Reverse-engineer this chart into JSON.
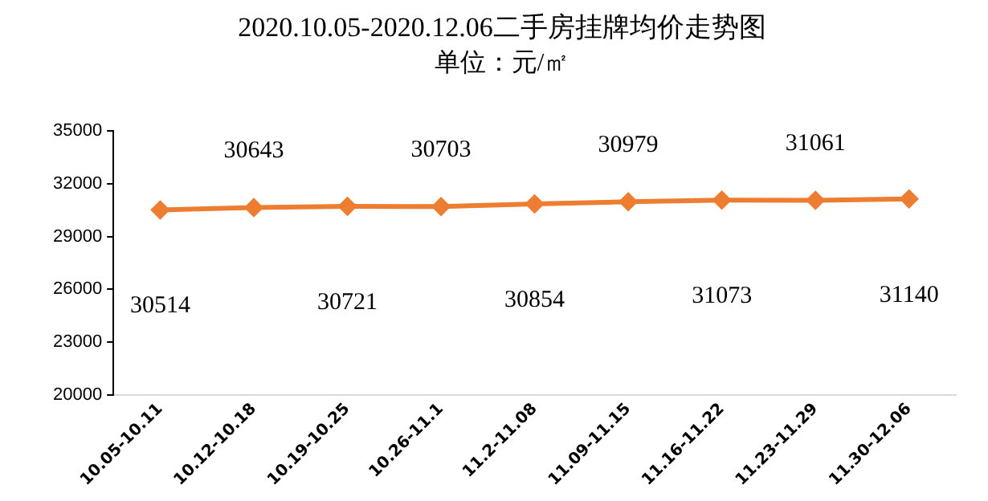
{
  "chart_data": {
    "type": "line",
    "title": "2020.10.05-2020.12.06二手房挂牌均价走势图",
    "subtitle": "单位：元/㎡",
    "categories": [
      "10.05-10.11",
      "10.12-10.18",
      "10.19-10.25",
      "10.26-11.1",
      "11.2-11.08",
      "11.09-11.15",
      "11.16-11.22",
      "11.23-11.29",
      "11.30-12.06"
    ],
    "series": [
      {
        "color": "#ed7d31",
        "values": [
          30514,
          30643,
          30721,
          30703,
          30854,
          30979,
          31073,
          31061,
          31140
        ]
      }
    ],
    "ylim": [
      20000,
      35000
    ],
    "yticks": [
      20000,
      23000,
      26000,
      29000,
      32000,
      35000
    ],
    "grid": false,
    "legend": false,
    "marker": "diamond",
    "line_style": "solid",
    "data_labels": true
  }
}
